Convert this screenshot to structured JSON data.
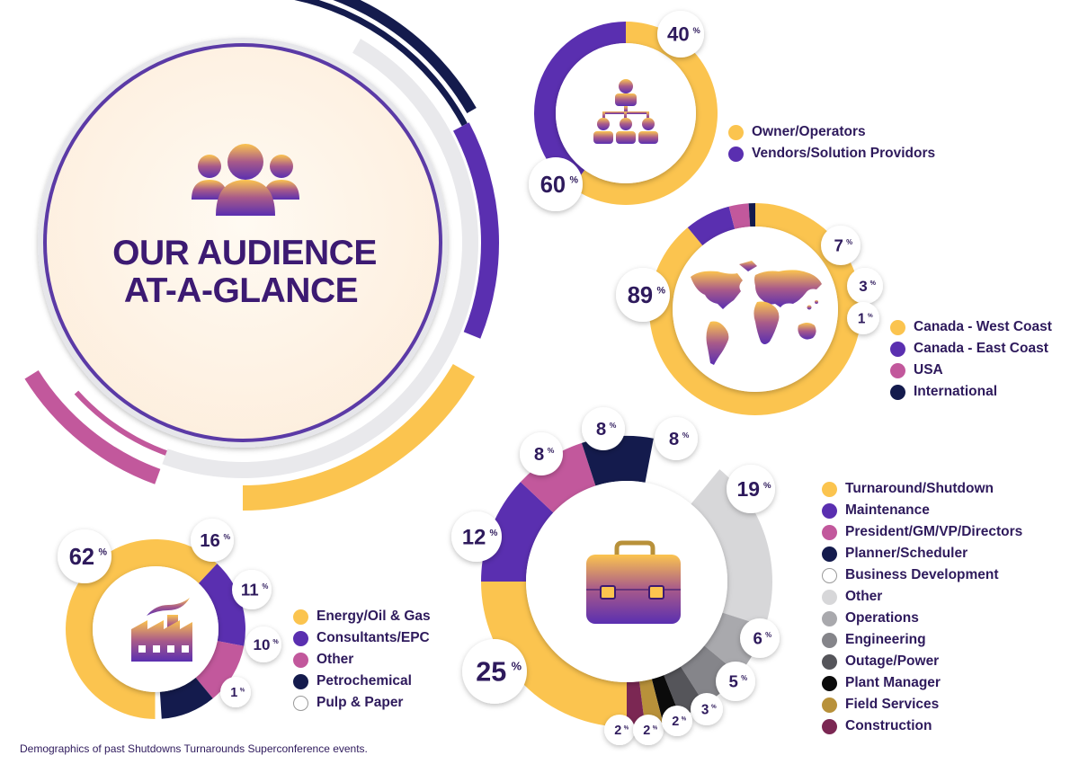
{
  "hero": {
    "title_line1": "OUR AUDIENCE",
    "title_line2": "AT-A-GLANCE"
  },
  "footnote": "Demographics of past Shutdowns Turnarounds Superconference events.",
  "colors": {
    "yellow": "#fbc44f",
    "purple": "#5a2fb0",
    "pink": "#c2589c",
    "navy": "#141b4d",
    "white": "#ffffff",
    "light_gray": "#d7d7d9",
    "gray": "#a9a9ad",
    "mid_gray": "#85858a",
    "dark_gray": "#55555a",
    "black": "#0b0b0b",
    "gold": "#b8913a",
    "maroon": "#7b2753",
    "text": "#2e1a5c"
  },
  "icons": [
    "people-group-icon",
    "org-chart-icon",
    "world-map-icon",
    "briefcase-icon",
    "factory-icon"
  ],
  "chart_data": [
    {
      "type": "pie",
      "id": "attendee-type",
      "categories": [
        "Owner/Operators",
        "Vendors/Solution Providors"
      ],
      "values": [
        60,
        40
      ],
      "labels": [
        "60",
        "40"
      ],
      "colors": [
        "#fbc44f",
        "#5a2fb0"
      ],
      "legend_placement": "right"
    },
    {
      "type": "pie",
      "id": "region",
      "categories": [
        "Canada - West Coast",
        "Canada - East Coast",
        "USA",
        "International"
      ],
      "values": [
        89,
        7,
        3,
        1
      ],
      "labels": [
        "89",
        "7",
        "3",
        "1"
      ],
      "colors": [
        "#fbc44f",
        "#5a2fb0",
        "#c2589c",
        "#141b4d"
      ],
      "legend_placement": "bottom-right"
    },
    {
      "type": "pie",
      "id": "job-function",
      "categories": [
        "Turnaround/Shutdown",
        "Maintenance",
        "President/GM/VP/Directors",
        "Planner/Scheduler",
        "Business Development",
        "Other",
        "Operations",
        "Engineering",
        "Outage/Power",
        "Plant Manager",
        "Field Services",
        "Construction"
      ],
      "values": [
        25,
        12,
        8,
        8,
        8,
        19,
        6,
        5,
        3,
        2,
        2,
        2
      ],
      "labels": [
        "25",
        "12",
        "8",
        "8",
        "8",
        "19",
        "6",
        "5",
        "3",
        "2",
        "2",
        "2"
      ],
      "colors": [
        "#fbc44f",
        "#5a2fb0",
        "#c2589c",
        "#141b4d",
        "#ffffff",
        "#d7d7d9",
        "#a9a9ad",
        "#85858a",
        "#55555a",
        "#0b0b0b",
        "#b8913a",
        "#7b2753"
      ],
      "legend_placement": "right"
    },
    {
      "type": "pie",
      "id": "industry",
      "categories": [
        "Energy/Oil & Gas",
        "Consultants/EPC",
        "Other",
        "Petrochemical",
        "Pulp & Paper"
      ],
      "values": [
        62,
        16,
        11,
        10,
        1
      ],
      "labels": [
        "62",
        "16",
        "11",
        "10",
        "1"
      ],
      "colors": [
        "#fbc44f",
        "#5a2fb0",
        "#c2589c",
        "#141b4d",
        "#ffffff"
      ],
      "legend_placement": "right"
    }
  ]
}
